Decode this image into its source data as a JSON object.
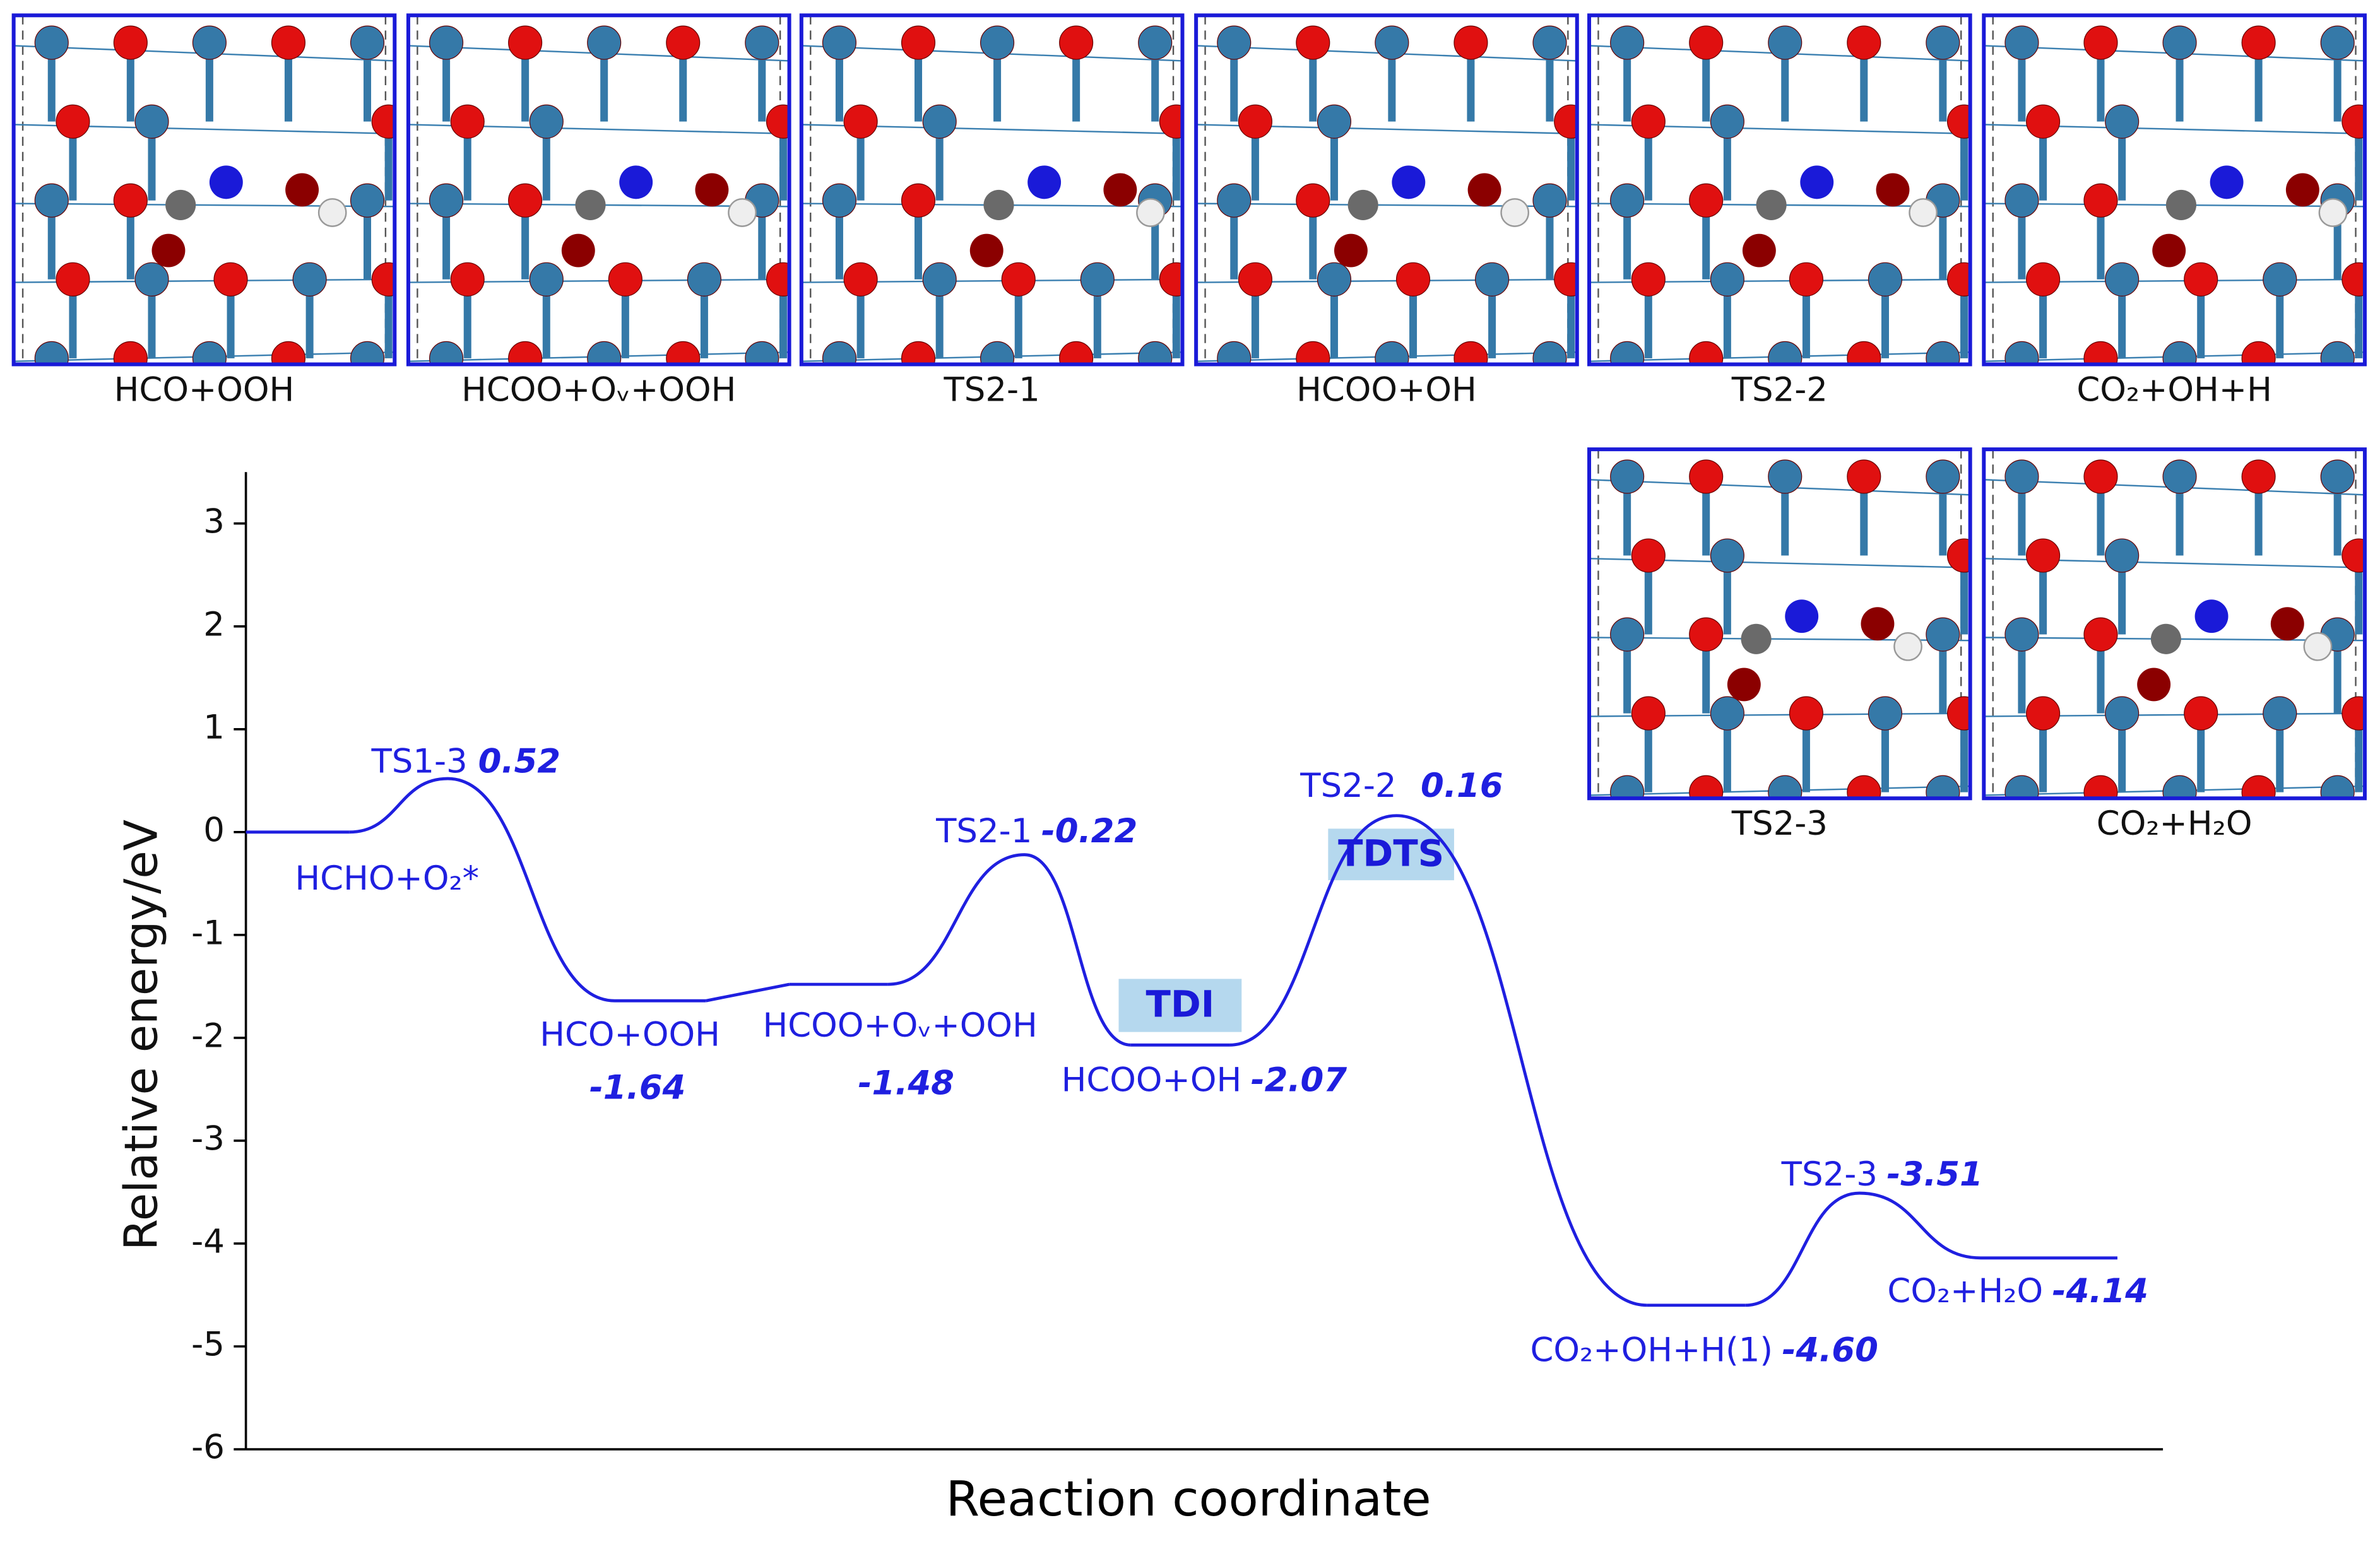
{
  "panels": [
    "HCO+OOH",
    "HCOO+Oᵥ+OOH",
    "TS2-1",
    "HCOO+OH",
    "TS2-2",
    "CO₂+OH+H",
    "TS2-3",
    "CO₂+H₂O"
  ],
  "chart_data": {
    "type": "energy",
    "y_label": "Relative energy/eV",
    "x_label": "Reaction coordinate",
    "color": "#1f1fe0",
    "categories": [
      "HCHO+O₂*",
      "TS1-3",
      "HCO+OOH",
      "HCOO+Oᵥ+OOH",
      "TS2-1",
      "HCOO+OH",
      "TS2-2",
      "CO₂+OH+H(1)",
      "TS2-3",
      "CO₂+H₂O"
    ],
    "values": [
      0,
      0.52,
      -1.64,
      -1.48,
      -0.22,
      -2.07,
      0.16,
      -4.6,
      -3.51,
      -4.14
    ],
    "value_labels": [
      null,
      "0.52",
      "-1.64",
      "-1.48",
      "-0.22",
      "-2.07",
      "0.16",
      "-4.60",
      "-3.51",
      "-4.14"
    ],
    "annotations": [
      "TDI",
      "TDTS"
    ],
    "ylim": [
      -6,
      3.5
    ],
    "yticks": [
      -6,
      -5,
      -4,
      -3,
      -2,
      -1,
      0,
      1,
      2,
      3
    ]
  }
}
